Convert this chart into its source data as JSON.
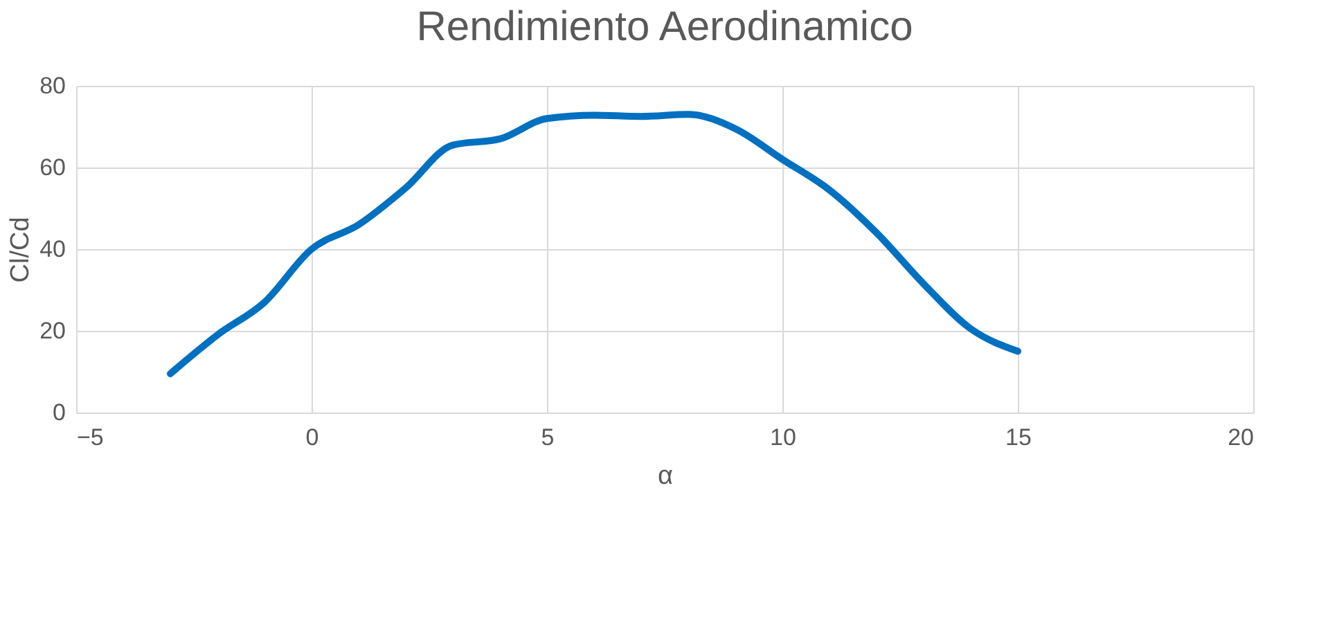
{
  "chart_data": {
    "type": "line",
    "title": "Rendimiento Aerodinamico",
    "xlabel": "α",
    "ylabel": "Cl/Cd",
    "x": [
      -3,
      -2,
      -1,
      0,
      1,
      2,
      3,
      4,
      5,
      6,
      7,
      8,
      9,
      10,
      11,
      12,
      13,
      14,
      15
    ],
    "series": [
      {
        "color": "#0070c0",
        "values": [
          9.5,
          19,
          27,
          40,
          46,
          55,
          65.5,
          67,
          72,
          72.8,
          72.5,
          73,
          69.5,
          62,
          54.5,
          44,
          31.5,
          20.5,
          15
        ]
      }
    ],
    "xlim": [
      -5,
      20
    ],
    "xticks": [
      -5,
      0,
      5,
      10,
      15,
      20
    ],
    "ylim": [
      0,
      80
    ],
    "yticks": [
      0,
      20,
      40,
      60,
      80
    ],
    "grid": true,
    "marker": "none",
    "line_style": "solid"
  }
}
